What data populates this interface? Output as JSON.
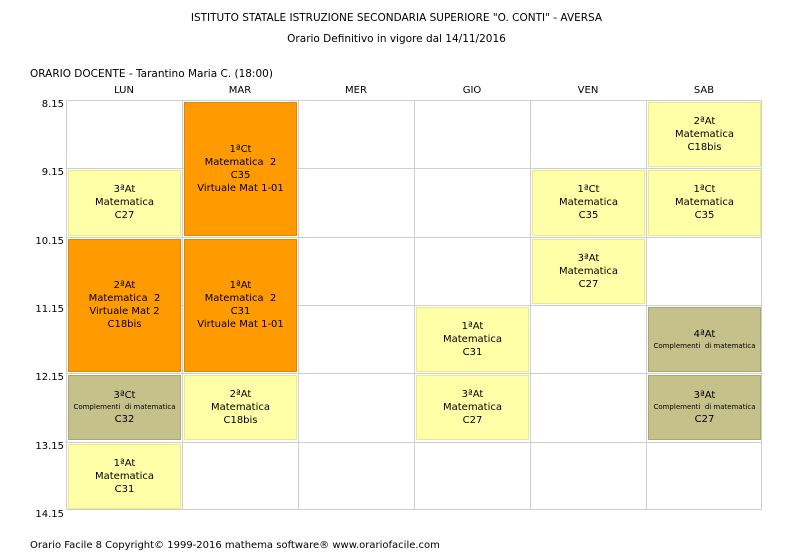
{
  "header": {
    "title": "ISTITUTO STATALE ISTRUZIONE SECONDARIA SUPERIORE \"O. CONTI\" - AVERSA",
    "subtitle": "Orario Definitivo in vigore dal 14/11/2016"
  },
  "teacher_label": "ORARIO DOCENTE   -   Tarantino Maria C.  (18:00)",
  "days": [
    "LUN",
    "MAR",
    "MER",
    "GIO",
    "VEN",
    "SAB"
  ],
  "times": [
    "8.15",
    "9.15",
    "10.15",
    "11.15",
    "12.15",
    "13.15",
    "14.15"
  ],
  "colors": {
    "yellow": "#ffffa8",
    "orange": "#ff9a00",
    "olive": "#c5c18a",
    "grid": "#cfcfcf"
  },
  "lessons": [
    {
      "day": 1,
      "start": 0,
      "span": 2,
      "color": "orange",
      "lines": [
        "1ªCt",
        "Matematica  2",
        "C35",
        "Virtuale Mat 1-01"
      ]
    },
    {
      "day": 5,
      "start": 0,
      "span": 1,
      "color": "yellow",
      "lines": [
        "2ªAt",
        "Matematica",
        "C18bis"
      ]
    },
    {
      "day": 0,
      "start": 1,
      "span": 1,
      "color": "yellow",
      "lines": [
        "3ªAt",
        "Matematica",
        "C27"
      ]
    },
    {
      "day": 4,
      "start": 1,
      "span": 1,
      "color": "yellow",
      "lines": [
        "1ªCt",
        "Matematica",
        "C35"
      ]
    },
    {
      "day": 5,
      "start": 1,
      "span": 1,
      "color": "yellow",
      "lines": [
        "1ªCt",
        "Matematica",
        "C35"
      ]
    },
    {
      "day": 0,
      "start": 2,
      "span": 2,
      "color": "orange",
      "lines": [
        "2ªAt",
        "Matematica  2",
        "Virtuale Mat 2",
        "C18bis"
      ]
    },
    {
      "day": 1,
      "start": 2,
      "span": 2,
      "color": "orange",
      "lines": [
        "1ªAt",
        "Matematica  2",
        "C31",
        "Virtuale Mat 1-01"
      ]
    },
    {
      "day": 4,
      "start": 2,
      "span": 1,
      "color": "yellow",
      "lines": [
        "3ªAt",
        "Matematica",
        "C27"
      ]
    },
    {
      "day": 3,
      "start": 3,
      "span": 1,
      "color": "yellow",
      "lines": [
        "1ªAt",
        "Matematica",
        "C31"
      ]
    },
    {
      "day": 5,
      "start": 3,
      "span": 1,
      "color": "olive",
      "lines": [
        "4ªAt",
        "Complementi  di matematica"
      ],
      "small": [
        1
      ]
    },
    {
      "day": 0,
      "start": 4,
      "span": 1,
      "color": "olive",
      "lines": [
        "3ªCt",
        "Complementi  di matematica",
        "C32"
      ],
      "small": [
        1
      ]
    },
    {
      "day": 1,
      "start": 4,
      "span": 1,
      "color": "yellow",
      "lines": [
        "2ªAt",
        "Matematica",
        "C18bis"
      ]
    },
    {
      "day": 3,
      "start": 4,
      "span": 1,
      "color": "yellow",
      "lines": [
        "3ªAt",
        "Matematica",
        "C27"
      ]
    },
    {
      "day": 5,
      "start": 4,
      "span": 1,
      "color": "olive",
      "lines": [
        "3ªAt",
        "Complementi  di matematica",
        "C27"
      ],
      "small": [
        1
      ]
    },
    {
      "day": 0,
      "start": 5,
      "span": 1,
      "color": "yellow",
      "lines": [
        "1ªAt",
        "Matematica",
        "C31"
      ]
    }
  ],
  "footer": "Orario Facile 8  Copyright© 1999-2016 mathema software®     www.orariofacile.com"
}
